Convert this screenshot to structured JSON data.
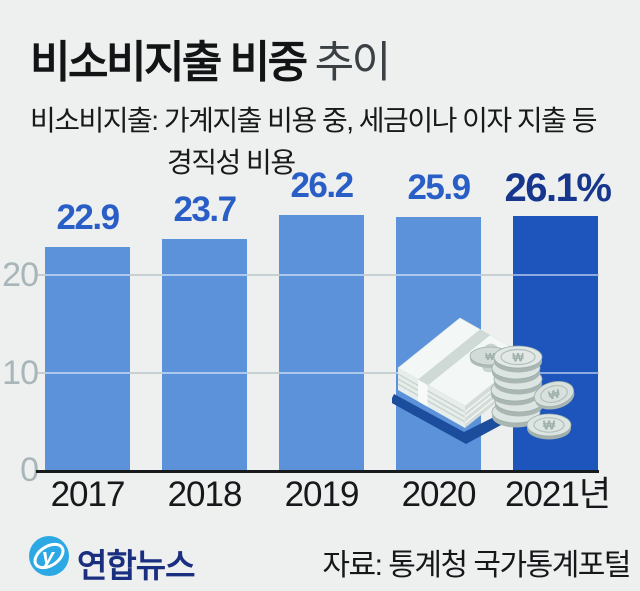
{
  "title": {
    "main": "비소비지출 비중",
    "suffix": "추이"
  },
  "subtitle": {
    "line1": "비소비지출: 가계지출 비용 중, 세금이나 이자 지출 등",
    "line2": "경직성 비용"
  },
  "chart_data": {
    "type": "bar",
    "title": "비소비지출 비중 추이",
    "categories": [
      "2017",
      "2018",
      "2019",
      "2020",
      "2021년"
    ],
    "values": [
      22.9,
      23.7,
      26.2,
      25.9,
      26.1
    ],
    "value_labels": [
      "22.9",
      "23.7",
      "26.2",
      "25.9",
      "26.1%"
    ],
    "unit": "%",
    "xlabel": "",
    "ylabel": "",
    "ylim": [
      0,
      30
    ],
    "yticks": [
      0,
      10,
      20
    ],
    "grid": true,
    "legend": false,
    "highlight_index": 4
  },
  "colors": {
    "background": "#edf0ee",
    "bar": "#5b92da",
    "bar_highlight": "#1d55bc",
    "value_label": "#2a5ec7",
    "value_label_highlight": "#17378f",
    "axis_line": "#171b1d",
    "gridline": "#c6d0d3",
    "tick_label": "#a8b5b9",
    "logo_blue": "#2ca9e4",
    "logo_text_navy": "#1b2f80"
  },
  "footer": {
    "logo_text": "연합뉴스",
    "source": "자료: 통계청 국가통계포털"
  },
  "icons": {
    "won_symbol": "₩",
    "logo_letter": "y",
    "money_illustration": "won-banknote-stack-and-coins",
    "logo_icon": "yonhap-swirl"
  }
}
